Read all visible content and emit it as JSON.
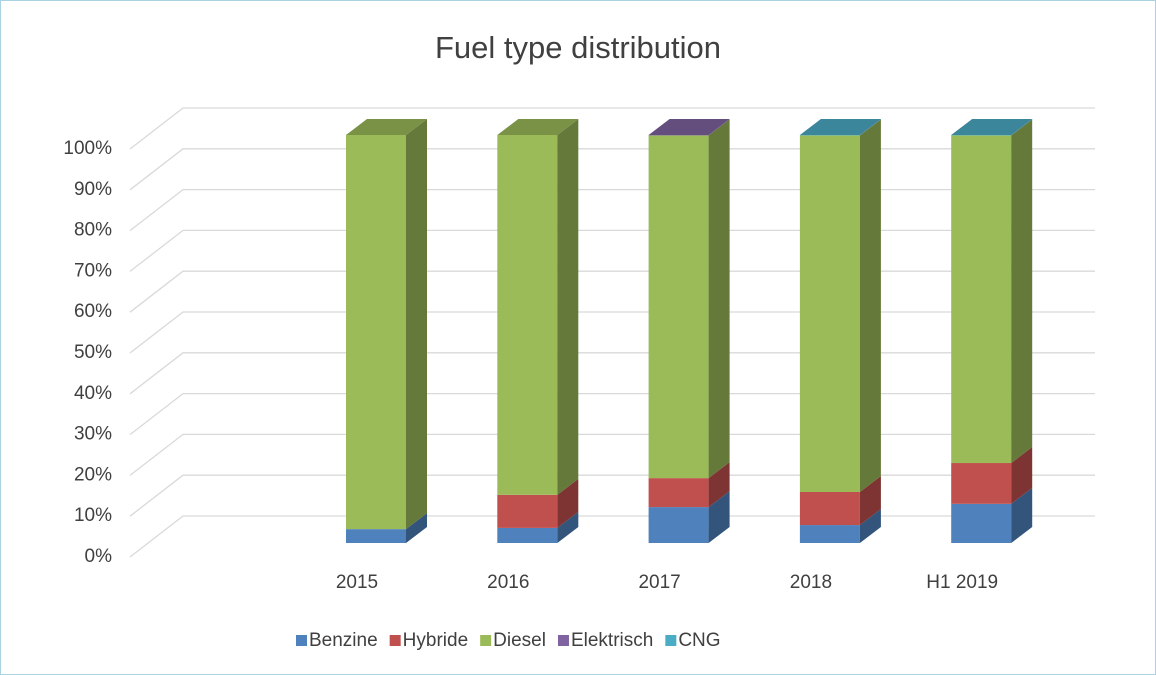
{
  "chart_data": {
    "type": "bar3d_stacked",
    "title": "Fuel type distribution",
    "categories": [
      "2015",
      "2016",
      "2017",
      "2018",
      "H1 2019"
    ],
    "series": [
      {
        "name": "Benzine",
        "color": "#4f81bd",
        "values": [
          3.4,
          3.7,
          8.8,
          4.4,
          9.6
        ]
      },
      {
        "name": "Hybride",
        "color": "#c0504d",
        "values": [
          0,
          8.1,
          7.1,
          8.1,
          10.0
        ]
      },
      {
        "name": "Diesel",
        "color": "#9bbb59",
        "values": [
          96.6,
          88.2,
          84.0,
          87.4,
          80.3
        ]
      },
      {
        "name": "Elektrisch",
        "color": "#8064a2",
        "values": [
          0,
          0,
          0.1,
          0,
          0
        ]
      },
      {
        "name": "CNG",
        "color": "#4bacc6",
        "values": [
          0,
          0,
          0,
          0.1,
          0.1
        ]
      }
    ],
    "ylim": [
      0,
      100
    ],
    "yticks": [
      {
        "value": 0,
        "label": "0%"
      },
      {
        "value": 10,
        "label": "10%"
      },
      {
        "value": 20,
        "label": "20%"
      },
      {
        "value": 30,
        "label": "30%"
      },
      {
        "value": 40,
        "label": "40%"
      },
      {
        "value": 50,
        "label": "50%"
      },
      {
        "value": 60,
        "label": "60%"
      },
      {
        "value": 70,
        "label": "70%"
      },
      {
        "value": 80,
        "label": "80%"
      },
      {
        "value": 90,
        "label": "90%"
      },
      {
        "value": 100,
        "label": "100%"
      }
    ],
    "grid": true,
    "legend": "bottom"
  }
}
